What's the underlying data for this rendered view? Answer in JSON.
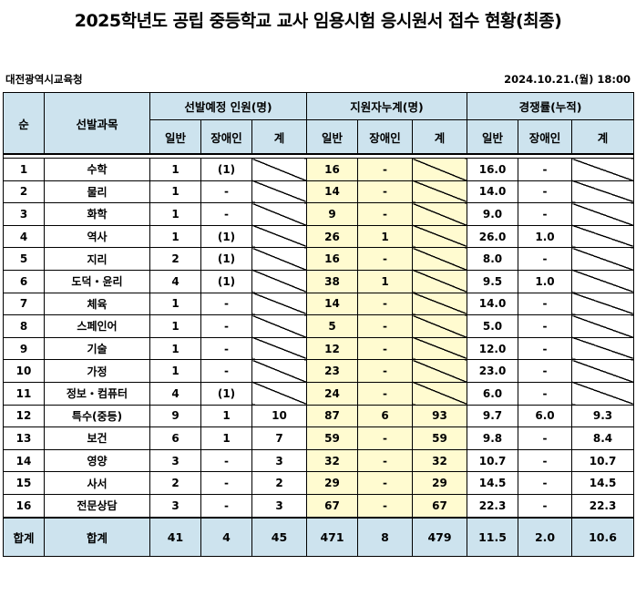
{
  "title": "2025학년도 공립 중등학교 교사 임용시험 응시원서 접수 현황(최종)",
  "office": "대전광역시교육청",
  "datetime": "2024.10.21.(월) 18:00",
  "headers": {
    "seq": "순",
    "subject": "선발과목",
    "planned": "선발예정 인원(명)",
    "applicants": "지원자누계(명)",
    "ratio": "경쟁률(누적)",
    "general": "일반",
    "disabled": "장애인",
    "total": "계"
  },
  "rows": [
    {
      "no": "1",
      "subject": "수학",
      "p_gen": "1",
      "p_dis": "(1)",
      "p_tot": "",
      "a_gen": "16",
      "a_dis": "-",
      "a_tot": "",
      "r_gen": "16.0",
      "r_dis": "-",
      "r_tot": ""
    },
    {
      "no": "2",
      "subject": "물리",
      "p_gen": "1",
      "p_dis": "-",
      "p_tot": "",
      "a_gen": "14",
      "a_dis": "-",
      "a_tot": "",
      "r_gen": "14.0",
      "r_dis": "-",
      "r_tot": ""
    },
    {
      "no": "3",
      "subject": "화학",
      "p_gen": "1",
      "p_dis": "-",
      "p_tot": "",
      "a_gen": "9",
      "a_dis": "-",
      "a_tot": "",
      "r_gen": "9.0",
      "r_dis": "-",
      "r_tot": ""
    },
    {
      "no": "4",
      "subject": "역사",
      "p_gen": "1",
      "p_dis": "(1)",
      "p_tot": "",
      "a_gen": "26",
      "a_dis": "1",
      "a_tot": "",
      "r_gen": "26.0",
      "r_dis": "1.0",
      "r_tot": ""
    },
    {
      "no": "5",
      "subject": "지리",
      "p_gen": "2",
      "p_dis": "(1)",
      "p_tot": "",
      "a_gen": "16",
      "a_dis": "-",
      "a_tot": "",
      "r_gen": "8.0",
      "r_dis": "-",
      "r_tot": ""
    },
    {
      "no": "6",
      "subject": "도덕・윤리",
      "p_gen": "4",
      "p_dis": "(1)",
      "p_tot": "",
      "a_gen": "38",
      "a_dis": "1",
      "a_tot": "",
      "r_gen": "9.5",
      "r_dis": "1.0",
      "r_tot": ""
    },
    {
      "no": "7",
      "subject": "체육",
      "p_gen": "1",
      "p_dis": "-",
      "p_tot": "",
      "a_gen": "14",
      "a_dis": "-",
      "a_tot": "",
      "r_gen": "14.0",
      "r_dis": "-",
      "r_tot": ""
    },
    {
      "no": "8",
      "subject": "스페인어",
      "p_gen": "1",
      "p_dis": "-",
      "p_tot": "",
      "a_gen": "5",
      "a_dis": "-",
      "a_tot": "",
      "r_gen": "5.0",
      "r_dis": "-",
      "r_tot": ""
    },
    {
      "no": "9",
      "subject": "기술",
      "p_gen": "1",
      "p_dis": "-",
      "p_tot": "",
      "a_gen": "12",
      "a_dis": "-",
      "a_tot": "",
      "r_gen": "12.0",
      "r_dis": "-",
      "r_tot": ""
    },
    {
      "no": "10",
      "subject": "가정",
      "p_gen": "1",
      "p_dis": "-",
      "p_tot": "",
      "a_gen": "23",
      "a_dis": "-",
      "a_tot": "",
      "r_gen": "23.0",
      "r_dis": "-",
      "r_tot": ""
    },
    {
      "no": "11",
      "subject": "정보・컴퓨터",
      "p_gen": "4",
      "p_dis": "(1)",
      "p_tot": "",
      "a_gen": "24",
      "a_dis": "-",
      "a_tot": "",
      "r_gen": "6.0",
      "r_dis": "-",
      "r_tot": ""
    },
    {
      "no": "12",
      "subject": "특수(중등)",
      "p_gen": "9",
      "p_dis": "1",
      "p_tot": "10",
      "a_gen": "87",
      "a_dis": "6",
      "a_tot": "93",
      "r_gen": "9.7",
      "r_dis": "6.0",
      "r_tot": "9.3"
    },
    {
      "no": "13",
      "subject": "보건",
      "p_gen": "6",
      "p_dis": "1",
      "p_tot": "7",
      "a_gen": "59",
      "a_dis": "-",
      "a_tot": "59",
      "r_gen": "9.8",
      "r_dis": "-",
      "r_tot": "8.4"
    },
    {
      "no": "14",
      "subject": "영양",
      "p_gen": "3",
      "p_dis": "-",
      "p_tot": "3",
      "a_gen": "32",
      "a_dis": "-",
      "a_tot": "32",
      "r_gen": "10.7",
      "r_dis": "-",
      "r_tot": "10.7"
    },
    {
      "no": "15",
      "subject": "사서",
      "p_gen": "2",
      "p_dis": "-",
      "p_tot": "2",
      "a_gen": "29",
      "a_dis": "-",
      "a_tot": "29",
      "r_gen": "14.5",
      "r_dis": "-",
      "r_tot": "14.5"
    },
    {
      "no": "16",
      "subject": "전문상담",
      "p_gen": "3",
      "p_dis": "-",
      "p_tot": "3",
      "a_gen": "67",
      "a_dis": "-",
      "a_tot": "67",
      "r_gen": "22.3",
      "r_dis": "-",
      "r_tot": "22.3"
    }
  ],
  "total": {
    "no": "합계",
    "subject": "합계",
    "p_gen": "41",
    "p_dis": "4",
    "p_tot": "45",
    "a_gen": "471",
    "a_dis": "8",
    "a_tot": "479",
    "r_gen": "11.5",
    "r_dis": "2.0",
    "r_tot": "10.6"
  }
}
